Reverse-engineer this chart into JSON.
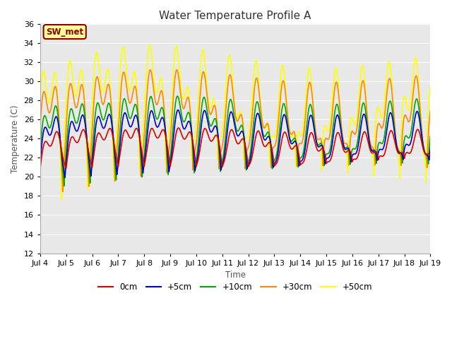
{
  "title": "Water Temperature Profile A",
  "xlabel": "Time",
  "ylabel": "Temperature (C)",
  "ylim": [
    12,
    36
  ],
  "xlim": [
    0,
    15
  ],
  "x_tick_labels": [
    "Jul 4",
    "Jul 5",
    "Jul 6",
    "Jul 7",
    "Jul 8",
    "Jul 9",
    "Jul 10",
    "Jul 11",
    "Jul 12",
    "Jul 13",
    "Jul 14",
    "Jul 15",
    "Jul 16",
    "Jul 17",
    "Jul 18",
    "Jul 19"
  ],
  "yticks": [
    12,
    14,
    16,
    18,
    20,
    22,
    24,
    26,
    28,
    30,
    32,
    34,
    36
  ],
  "series_colors": {
    "0cm": "#dd0000",
    "+5cm": "#0000cc",
    "+10cm": "#00aa00",
    "+30cm": "#ff8800",
    "+50cm": "#ffff00"
  },
  "fig_bg": "#ffffff",
  "plot_bg": "#e8e8e8",
  "legend_label": "SW_met",
  "legend_box_facecolor": "#ffff99",
  "legend_box_edgecolor": "#8b0000",
  "grid_color": "#ffffff",
  "lw": 1.2
}
